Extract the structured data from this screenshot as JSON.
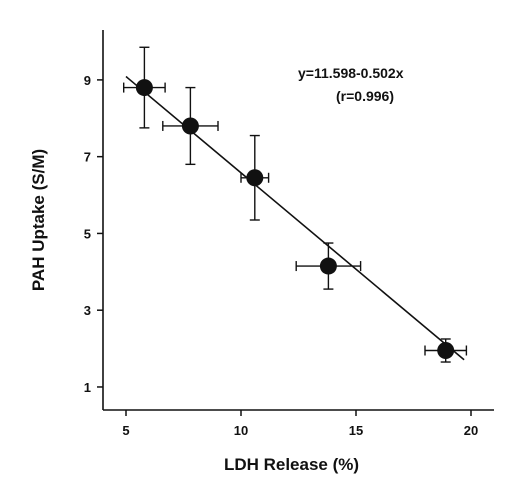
{
  "chart_data": {
    "type": "scatter",
    "xlabel": "LDH Release (%)",
    "ylabel": "PAH Uptake (S/M)",
    "xlim": [
      4,
      21
    ],
    "ylim": [
      0.4,
      10.3
    ],
    "x_ticks": [
      5,
      10,
      15,
      20
    ],
    "y_ticks": [
      1,
      3,
      5,
      7,
      9
    ],
    "points": [
      {
        "x": 5.8,
        "y": 8.8,
        "x_err": 0.9,
        "y_err": 1.05
      },
      {
        "x": 7.8,
        "y": 7.8,
        "x_err": 1.2,
        "y_err": 1.0
      },
      {
        "x": 10.6,
        "y": 6.45,
        "x_err": 0.6,
        "y_err": 1.1
      },
      {
        "x": 13.8,
        "y": 4.15,
        "x_err": 1.4,
        "y_err": 0.6
      },
      {
        "x": 18.9,
        "y": 1.95,
        "x_err": 0.9,
        "y_err": 0.3
      }
    ],
    "fit_line": {
      "intercept": 11.598,
      "slope": -0.502,
      "x_range": [
        5.0,
        19.7
      ]
    },
    "annotation_lines": [
      "y=11.598-0.502x",
      "(r=0.996)"
    ],
    "grid": false,
    "legend": "none"
  }
}
